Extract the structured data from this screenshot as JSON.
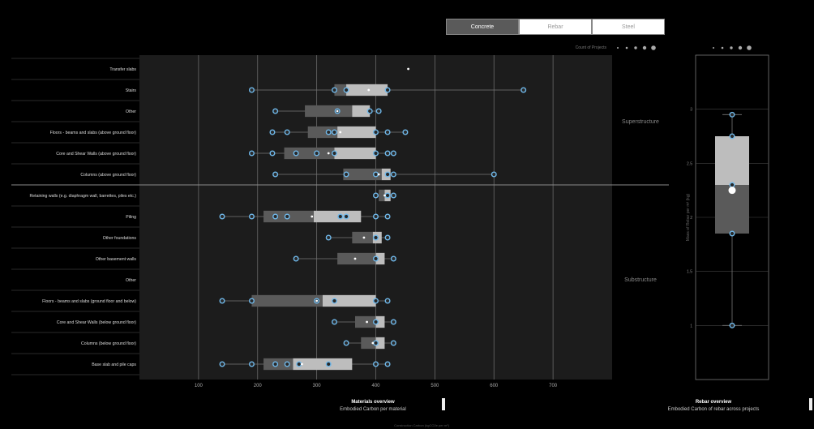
{
  "tabs": [
    {
      "label": "Concrete",
      "active": true
    },
    {
      "label": "Rebar",
      "active": false
    },
    {
      "label": "Steel",
      "active": false
    }
  ],
  "count_legend_label": "Count of Projects",
  "chart_data": [
    {
      "type": "boxplot",
      "title": "Materials overview",
      "subtitle": "Embodied Carbon per material",
      "xlabel": "Construction Carbon (kgCO2e per m²)",
      "xlim": [
        0,
        800
      ],
      "xticks": [
        100,
        200,
        300,
        400,
        500,
        600,
        700
      ],
      "groups": [
        {
          "name": "Superstructure",
          "rows": [
            {
              "label": "Transfer slabs",
              "q1": null,
              "median": null,
              "q3": null,
              "whisker_low": null,
              "whisker_high": null,
              "mean": 455,
              "points": []
            },
            {
              "label": "Stairs",
              "q1": 330,
              "median": 350,
              "q3": 420,
              "whisker_low": 190,
              "whisker_high": 650,
              "mean": 388,
              "points": [
                190,
                330,
                350,
                420,
                650
              ]
            },
            {
              "label": "Other",
              "q1": 280,
              "median": 360,
              "q3": 390,
              "whisker_low": 230,
              "whisker_high": 405,
              "mean": 335,
              "points": [
                230,
                335,
                390,
                405
              ]
            },
            {
              "label": "Floors - beams and slabs (above ground floor)",
              "q1": 285,
              "median": 335,
              "q3": 400,
              "whisker_low": 225,
              "whisker_high": 450,
              "mean": 340,
              "points": [
                225,
                250,
                320,
                330,
                400,
                420,
                450
              ]
            },
            {
              "label": "Core and Shear Walls (above ground floor)",
              "q1": 245,
              "median": 330,
              "q3": 400,
              "whisker_low": 190,
              "whisker_high": 430,
              "mean": 320,
              "points": [
                190,
                225,
                265,
                300,
                330,
                400,
                420,
                430
              ]
            },
            {
              "label": "Columns (above ground floor)",
              "q1": 345,
              "median": 410,
              "q3": 425,
              "whisker_low": 230,
              "whisker_high": 600,
              "mean": 405,
              "points": [
                230,
                350,
                400,
                420,
                430,
                600
              ]
            }
          ]
        },
        {
          "name": "Substructure",
          "rows": [
            {
              "label": "Retaining walls (e.g. diaphragm wall, barrettes, piles etc.)",
              "q1": 405,
              "median": 415,
              "q3": 425,
              "whisker_low": 400,
              "whisker_high": 430,
              "mean": 415,
              "points": [
                400,
                420,
                430
              ]
            },
            {
              "label": "Piling",
              "q1": 210,
              "median": 295,
              "q3": 375,
              "whisker_low": 140,
              "whisker_high": 420,
              "mean": 292,
              "points": [
                140,
                190,
                230,
                250,
                340,
                350,
                400,
                420
              ]
            },
            {
              "label": "Other foundations",
              "q1": 360,
              "median": 395,
              "q3": 410,
              "whisker_low": 320,
              "whisker_high": 420,
              "mean": 380,
              "points": [
                320,
                400,
                420
              ]
            },
            {
              "label": "Other basement walls",
              "q1": 335,
              "median": 400,
              "q3": 415,
              "whisker_low": 265,
              "whisker_high": 430,
              "mean": 365,
              "points": [
                265,
                400,
                430
              ]
            },
            {
              "label": "Other",
              "q1": null,
              "median": null,
              "q3": null,
              "whisker_low": null,
              "whisker_high": null,
              "mean": null,
              "points": []
            },
            {
              "label": "Floors - beams and slabs (ground floor and below)",
              "q1": 190,
              "median": 310,
              "q3": 400,
              "whisker_low": 140,
              "whisker_high": 420,
              "mean": 300,
              "points": [
                140,
                190,
                300,
                330,
                400,
                420
              ]
            },
            {
              "label": "Core and Shear Walls (below ground floor)",
              "q1": 365,
              "median": 400,
              "q3": 415,
              "whisker_low": 330,
              "whisker_high": 430,
              "mean": 385,
              "points": [
                330,
                400,
                430
              ]
            },
            {
              "label": "Columns (below ground floor)",
              "q1": 375,
              "median": 400,
              "q3": 415,
              "whisker_low": 350,
              "whisker_high": 430,
              "mean": 395,
              "points": [
                350,
                400,
                430
              ]
            },
            {
              "label": "Base slab and pile caps",
              "q1": 210,
              "median": 260,
              "q3": 360,
              "whisker_low": 140,
              "whisker_high": 420,
              "mean": 275,
              "points": [
                140,
                190,
                230,
                250,
                270,
                320,
                400,
                420
              ]
            }
          ]
        }
      ]
    },
    {
      "type": "boxplot",
      "title": "Rebar overview",
      "subtitle": "Embodied Carbon of rebar across projects",
      "ylabel": "Mass of Rebar per m³ (kg)",
      "ylim": [
        0.5,
        3.5
      ],
      "yticks": [
        1,
        1.5,
        2,
        2.5,
        3
      ],
      "box": {
        "q1": 1.85,
        "median": 2.3,
        "q3": 2.75,
        "whisker_low": 1.0,
        "whisker_high": 2.95,
        "mean": 2.25
      },
      "points": [
        1.0,
        1.85,
        2.3,
        2.75,
        2.95
      ]
    }
  ],
  "footer": {
    "bottom_note": "Construction Carbon (kgCO2e per m²)"
  }
}
